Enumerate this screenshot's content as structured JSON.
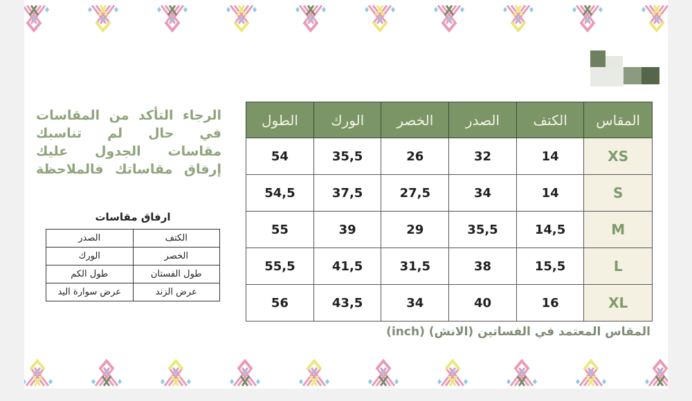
{
  "note": {
    "lines": [
      "الرجاء التأكد من المقاسات",
      "في حال لم تناسبك",
      "مقاسات الجدول عليك",
      "إرفاق مقاساتك فالملاحظة"
    ]
  },
  "attach": {
    "title": "ارفاق مقاسات",
    "rows": [
      [
        "الكتف",
        "الصدر"
      ],
      [
        "الخصر",
        "الورك"
      ],
      [
        "طول الفستان",
        "طول الكم"
      ],
      [
        "عرض الزند",
        "عرض سوارة اليد"
      ]
    ]
  },
  "size_table": {
    "headers": [
      "المقاس",
      "الكتف",
      "الصدر",
      "الخصر",
      "الورك",
      "الطول"
    ],
    "rows": [
      [
        "XS",
        "14",
        "32",
        "26",
        "35,5",
        "54"
      ],
      [
        "S",
        "14",
        "34",
        "27,5",
        "37,5",
        "54,5"
      ],
      [
        "M",
        "14,5",
        "35,5",
        "29",
        "39",
        "55"
      ],
      [
        "L",
        "15,5",
        "38",
        "31,5",
        "41,5",
        "55,5"
      ],
      [
        "XL",
        "16",
        "40",
        "34",
        "43,5",
        "56"
      ]
    ]
  },
  "unit_note": "المقاس المعتمد في الفساتين (الانش) (inch)",
  "colors": {
    "header_bg": "#7b9566",
    "size_cell_bg": "#f4f1e3",
    "accent_green": "#7f9a6b",
    "motif_pink": "#e89ab8",
    "motif_yellow": "#ece77a",
    "motif_blue": "#8fcbe3",
    "motif_green": "#7a8a66"
  }
}
